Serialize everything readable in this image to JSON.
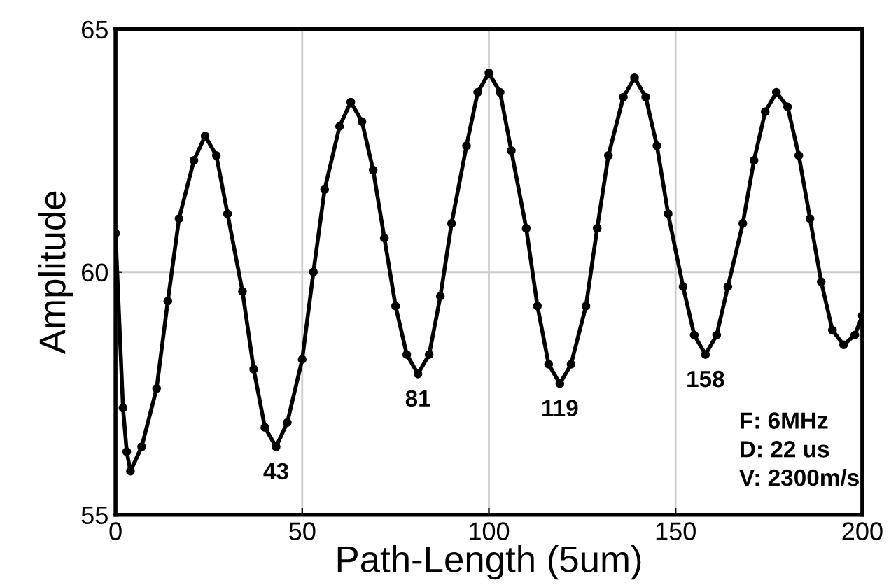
{
  "chart_data": {
    "type": "line",
    "xlabel": "Path-Length (5um)",
    "ylabel": "Amplitude",
    "xlim": [
      0,
      200
    ],
    "ylim": [
      55,
      65
    ],
    "xticks": [
      0,
      50,
      100,
      150,
      200
    ],
    "yticks": [
      55,
      60,
      65
    ],
    "grid": true,
    "marker": "circle",
    "line_style": "solid",
    "series": [
      {
        "color": "#000000",
        "x": [
          0,
          2,
          3,
          4,
          7,
          11,
          14,
          17,
          21,
          24,
          27,
          30,
          34,
          37,
          40,
          43,
          46,
          50,
          53,
          56,
          60,
          63,
          66,
          69,
          72,
          75,
          78,
          81,
          84,
          87,
          90,
          94,
          97,
          100,
          103,
          106,
          110,
          113,
          116,
          119,
          122,
          126,
          129,
          132,
          136,
          139,
          142,
          145,
          148,
          152,
          155,
          158,
          161,
          164,
          168,
          171,
          174,
          177,
          180,
          183,
          186,
          189,
          192,
          195,
          198,
          200
        ],
        "values": [
          60.8,
          57.2,
          56.3,
          55.9,
          56.4,
          57.6,
          59.4,
          61.1,
          62.3,
          62.8,
          62.4,
          61.2,
          59.6,
          58.0,
          56.8,
          56.4,
          56.9,
          58.2,
          60.0,
          61.7,
          63.0,
          63.5,
          63.1,
          62.1,
          60.7,
          59.3,
          58.3,
          57.9,
          58.3,
          59.5,
          61.0,
          62.6,
          63.7,
          64.1,
          63.7,
          62.5,
          60.9,
          59.3,
          58.1,
          57.7,
          58.1,
          59.3,
          60.9,
          62.4,
          63.6,
          64.0,
          63.6,
          62.6,
          61.2,
          59.7,
          58.7,
          58.3,
          58.7,
          59.7,
          61.0,
          62.3,
          63.3,
          63.7,
          63.4,
          62.4,
          61.1,
          59.8,
          58.8,
          58.5,
          58.7,
          59.1
        ]
      }
    ],
    "annotations": [
      {
        "text": "43",
        "x": 43,
        "y": 56.4
      },
      {
        "text": "81",
        "x": 81,
        "y": 57.9
      },
      {
        "text": "119",
        "x": 119,
        "y": 57.7
      },
      {
        "text": "158",
        "x": 158,
        "y": 58.3
      },
      "F: 6MHz\nD: 22 us\nV: 2300m/s"
    ]
  }
}
